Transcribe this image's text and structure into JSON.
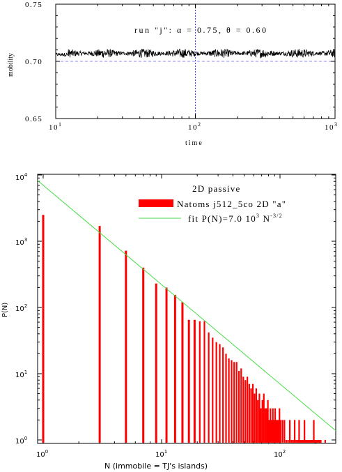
{
  "chart_data": [
    {
      "type": "line",
      "xlabel": "time",
      "ylabel": "mobility",
      "xscale": "log",
      "xlim": [
        10,
        1000
      ],
      "ylim": [
        0.65,
        0.75
      ],
      "x_tick_labels": [
        {
          "base": "10",
          "exp": "1",
          "value": 10
        },
        {
          "base": "10",
          "exp": "2",
          "value": 100
        },
        {
          "base": "10",
          "exp": "3",
          "value": 1000
        }
      ],
      "y_tick_labels": [
        "0.65",
        "0.70",
        "0.75"
      ],
      "y_tick_values": [
        0.65,
        0.7,
        0.75
      ],
      "annotation": "run \"j\":  α = 0.75,  θ = 0.60",
      "reference_lines": [
        {
          "orientation": "horizontal",
          "value": 0.7,
          "color": "#8080ff",
          "style": "dashed"
        },
        {
          "orientation": "vertical",
          "value": 100,
          "color": "#6060ff",
          "style": "dashed"
        }
      ],
      "series": [
        {
          "color": "#000000",
          "x_range": [
            10,
            1000
          ],
          "mean": 0.707,
          "approx_min": 0.7,
          "approx_max": 0.713,
          "segments": [
            {
              "x": 10,
              "y": 0.706
            },
            {
              "x": 30,
              "y": 0.708
            },
            {
              "x": 100,
              "y": 0.707
            },
            {
              "x": 300,
              "y": 0.706
            },
            {
              "x": 1000,
              "y": 0.707
            }
          ]
        }
      ]
    },
    {
      "type": "bar",
      "xlabel": "N (immobile = TJ's islands)",
      "ylabel": "P(N)",
      "xscale": "log",
      "yscale": "log",
      "xlim": [
        0.8,
        300
      ],
      "ylim": [
        0.85,
        10000
      ],
      "x_tick_labels": [
        {
          "base": "10",
          "exp": "0",
          "value": 1
        },
        {
          "base": "10",
          "exp": "1",
          "value": 10
        },
        {
          "base": "10",
          "exp": "2",
          "value": 100
        }
      ],
      "y_tick_labels": [
        {
          "base": "10",
          "exp": "0",
          "value": 1
        },
        {
          "base": "10",
          "exp": "1",
          "value": 10
        },
        {
          "base": "10",
          "exp": "2",
          "value": 100
        },
        {
          "base": "10",
          "exp": "3",
          "value": 1000
        },
        {
          "base": "10",
          "exp": "4",
          "value": 10000
        }
      ],
      "legend": {
        "title": "2D passive",
        "position": "top-right",
        "entries": [
          {
            "label": "Natoms j512_5co 2D \"a\"",
            "color": "#ff0000",
            "kind": "bar"
          },
          {
            "label_main": "fit P(N)=7.0 10",
            "label_sup1": "3",
            "label_mid": " N",
            "label_sup2": "-3/2",
            "color": "#44dd44",
            "kind": "line"
          }
        ]
      },
      "fit": {
        "amplitude": 7000,
        "exponent": -1.5,
        "color": "#44dd44"
      },
      "bars": {
        "color": "#ff0000",
        "x": [
          1,
          3,
          5,
          7,
          9,
          11,
          13,
          15,
          17,
          19,
          21,
          23,
          25,
          27,
          29,
          31,
          33,
          35,
          37,
          39,
          41,
          43,
          45,
          47,
          49,
          51,
          53,
          55,
          57,
          59,
          61,
          63,
          65,
          67,
          69,
          71,
          73,
          75,
          77,
          79,
          81,
          83,
          85,
          87,
          89,
          91,
          93,
          95,
          97,
          99,
          101,
          105,
          109,
          113,
          117,
          121,
          125,
          129,
          133,
          137,
          141,
          145,
          149,
          153,
          157,
          161,
          165,
          169,
          173,
          177,
          181,
          185,
          189,
          193,
          197,
          201,
          205,
          209,
          213,
          217,
          221,
          241
        ],
        "values": [
          2500,
          1700,
          720,
          400,
          230,
          200,
          155,
          120,
          65,
          65,
          62,
          62,
          42,
          35,
          30,
          28,
          25,
          20,
          17,
          16,
          15,
          15,
          11,
          12,
          9,
          8,
          9,
          7,
          6,
          7,
          5,
          6,
          4,
          5,
          3,
          4,
          5,
          3,
          3,
          4,
          2,
          3,
          2,
          3,
          2,
          3,
          2,
          2,
          2,
          3,
          2,
          2,
          2,
          1,
          1,
          2,
          1,
          1,
          2,
          1,
          1,
          2,
          1,
          1,
          1,
          2,
          1,
          1,
          1,
          1,
          1,
          1,
          1,
          2,
          1,
          1,
          1,
          1,
          1,
          1,
          1,
          1
        ]
      }
    }
  ]
}
